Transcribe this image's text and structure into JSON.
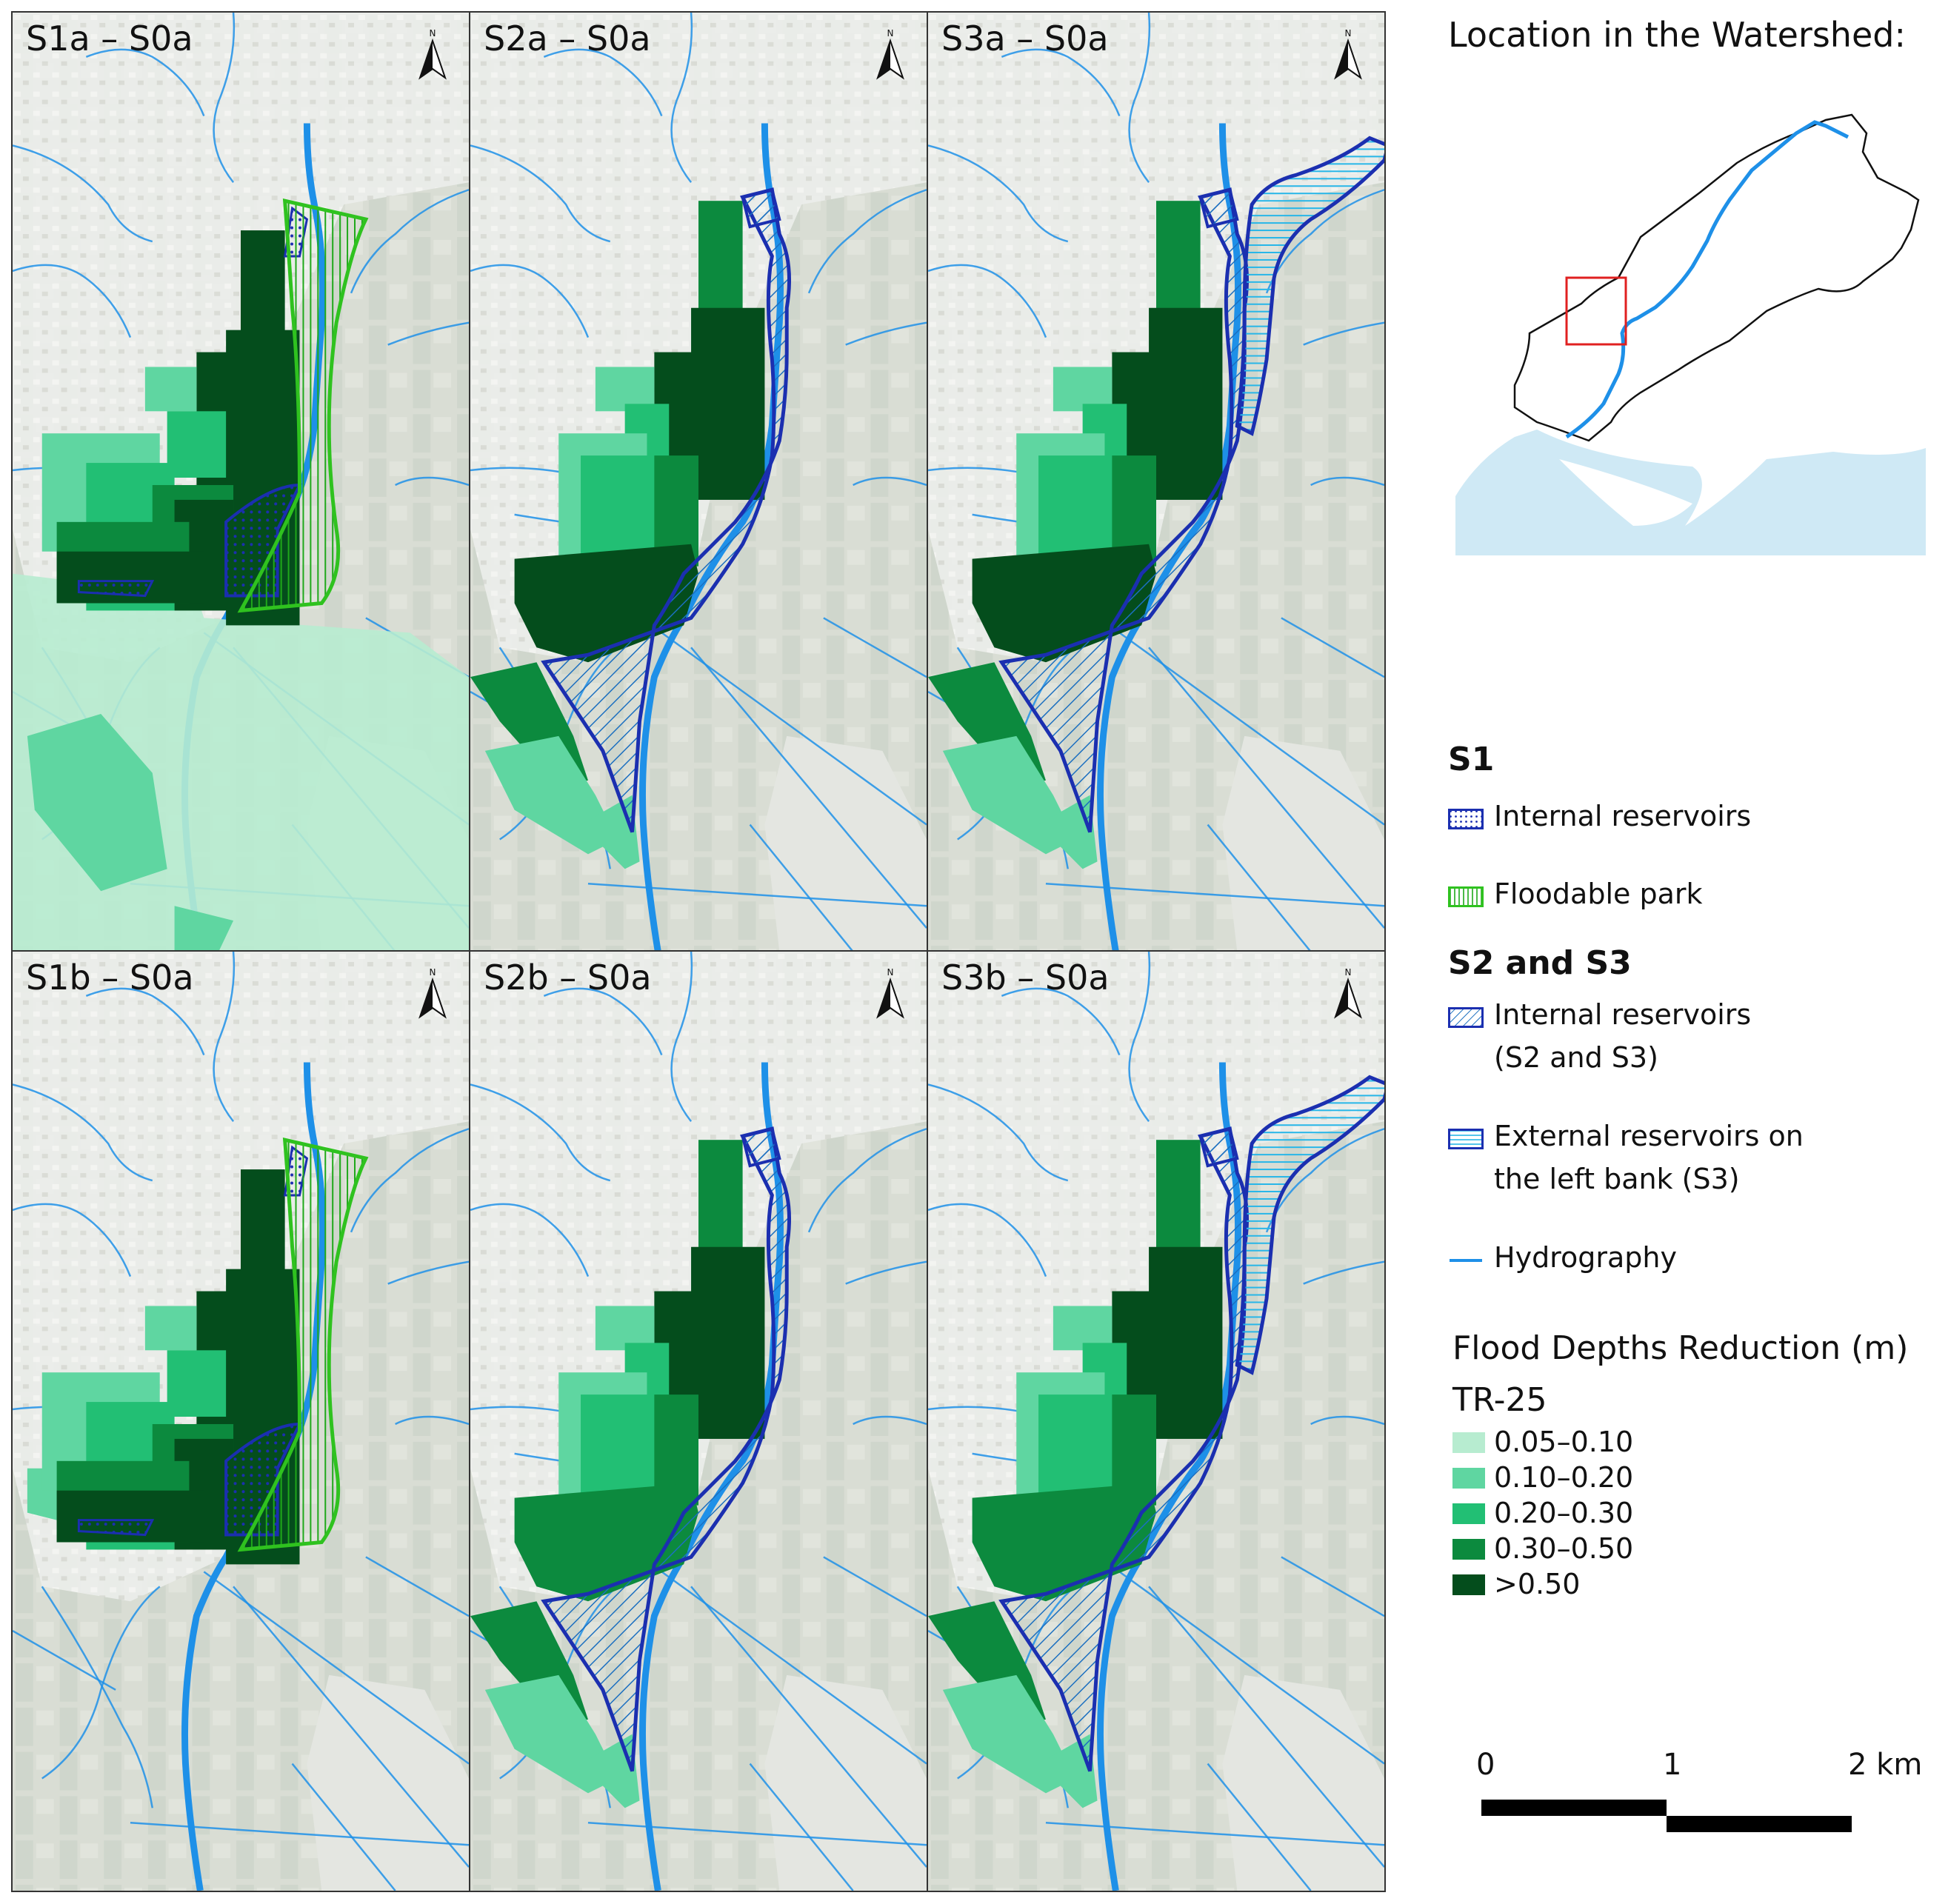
{
  "panels": [
    {
      "id": "s1a",
      "title": "S1a – S0a",
      "scenario": "S1",
      "column": 0,
      "row": 0
    },
    {
      "id": "s2a",
      "title": "S2a – S0a",
      "scenario": "S2",
      "column": 1,
      "row": 0
    },
    {
      "id": "s3a",
      "title": "S3a – S0a",
      "scenario": "S3",
      "column": 2,
      "row": 0
    },
    {
      "id": "s1b",
      "title": "S1b – S0a",
      "scenario": "S1",
      "column": 0,
      "row": 1
    },
    {
      "id": "s2b",
      "title": "S2b – S0a",
      "scenario": "S2",
      "column": 1,
      "row": 1
    },
    {
      "id": "s3b",
      "title": "S3b – S0a",
      "scenario": "S3",
      "column": 2,
      "row": 1
    }
  ],
  "north_label": "N",
  "location": {
    "title": "Location in the Watershed:"
  },
  "legend": {
    "s1_header": "S1",
    "s1_items": [
      {
        "label": "Internal reservoirs",
        "style": "dotted"
      },
      {
        "label": "Floodable park",
        "style": "vertical-lines"
      }
    ],
    "s2s3_header": "S2 and S3",
    "s2s3_items": [
      {
        "label": "Internal reservoirs",
        "label2": "(S2 and S3)",
        "style": "diagonal"
      },
      {
        "label": "External reservoirs on",
        "label2": "the left bank (S3)",
        "style": "horizontal-lines"
      },
      {
        "label": "Hydrography",
        "style": "line"
      }
    ],
    "flood_title": "Flood Depths Reduction (m)",
    "flood_subtitle": "TR-25",
    "classes": [
      {
        "label": "0.05–0.10",
        "color": "#b7ecd0"
      },
      {
        "label": "0.10–0.20",
        "color": "#5fd6a1"
      },
      {
        "label": "0.20–0.30",
        "color": "#22bf74"
      },
      {
        "label": "0.30–0.50",
        "color": "#0c8a3e"
      },
      {
        "label": ">0.50",
        "color": "#044d1c"
      }
    ]
  },
  "scale_bar": {
    "labels": [
      "0",
      "1",
      "2 km"
    ]
  },
  "colors": {
    "hydrography": "#1e90e8",
    "reservoir_outline": "#1b2fb0",
    "park_outline": "#2fc21f",
    "inset_frame": "#e02020",
    "sea": "#cfe9f5",
    "background": "#e6e8e3"
  }
}
